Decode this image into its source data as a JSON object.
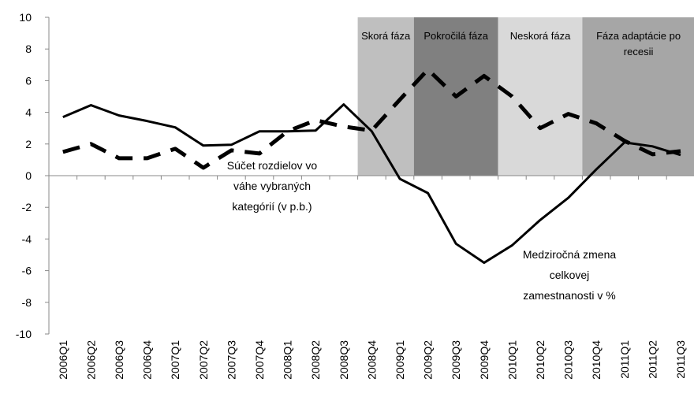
{
  "chart_data": {
    "type": "line",
    "categories": [
      "2006Q1",
      "2006Q2",
      "2006Q3",
      "2006Q4",
      "2007Q1",
      "2007Q2",
      "2007Q3",
      "2007Q4",
      "2008Q1",
      "2008Q2",
      "2008Q3",
      "2008Q4",
      "2009Q1",
      "2009Q2",
      "2009Q3",
      "2009Q4",
      "2010Q1",
      "2010Q2",
      "2010Q3",
      "2010Q4",
      "2011Q1",
      "2011Q2",
      "2011Q3"
    ],
    "series": [
      {
        "label": [
          "Medziročná zmena",
          "celkovej",
          "zamestnanosti v %"
        ],
        "color": "#000000",
        "dash": "solid",
        "values": [
          3.7,
          4.45,
          3.8,
          3.45,
          3.05,
          1.9,
          1.95,
          2.8,
          2.8,
          2.85,
          4.5,
          2.8,
          -0.2,
          -1.1,
          -4.3,
          -5.5,
          -4.4,
          -2.8,
          -1.4,
          0.4,
          2.1,
          1.85,
          1.3
        ]
      },
      {
        "label": [
          "Súčet rozdielov vo",
          "váhe vybraných",
          "kategórií (v p.b.)"
        ],
        "color": "#000000",
        "dash": "dashed",
        "values": [
          1.5,
          2.0,
          1.1,
          1.1,
          1.7,
          0.5,
          1.6,
          1.4,
          2.8,
          3.5,
          3.1,
          2.85,
          4.8,
          6.7,
          5.0,
          6.3,
          5.0,
          3.0,
          3.9,
          3.3,
          2.2,
          1.35,
          1.55
        ]
      }
    ],
    "phases": [
      {
        "label": [
          "Skorá fáza"
        ],
        "start": "2008Q4",
        "end": "2009Q1",
        "color": "#bfbfbf"
      },
      {
        "label": [
          "Pokročilá fáza"
        ],
        "start": "2009Q2",
        "end": "2009Q4",
        "color": "#808080"
      },
      {
        "label": [
          "Neskorá fáza"
        ],
        "start": "2010Q1",
        "end": "2010Q3",
        "color": "#d9d9d9"
      },
      {
        "label": [
          "Fáza adaptácie po",
          "recesii"
        ],
        "start": "2010Q4",
        "end": "2011Q3",
        "color": "#a6a6a6"
      }
    ],
    "ylim": [
      -10,
      10
    ],
    "yticks": [
      -10,
      -8,
      -6,
      -4,
      -2,
      0,
      2,
      4,
      6,
      8,
      10
    ]
  }
}
